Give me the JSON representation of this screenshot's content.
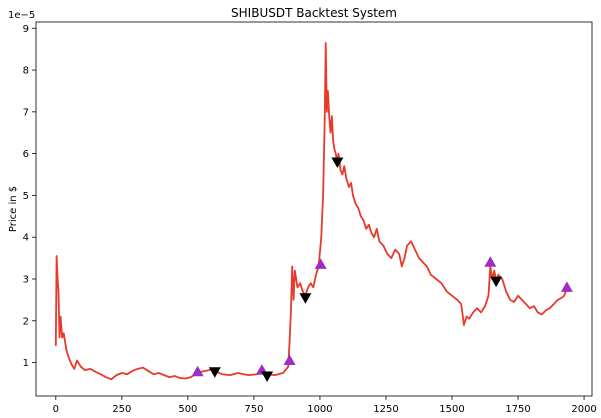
{
  "chart_data": {
    "type": "line",
    "title": "SHIBUSDT Backtest System",
    "xlabel": "",
    "ylabel": "Price in $",
    "y_offset_label": "1e−5",
    "xlim": [
      -75,
      2030
    ],
    "ylim": [
      0.2,
      9.15
    ],
    "grid": false,
    "x_ticks": [
      0,
      250,
      500,
      750,
      1000,
      1250,
      1500,
      1750,
      2000
    ],
    "x_tick_labels": [
      "0",
      "250",
      "500",
      "750",
      "1000",
      "1250",
      "1500",
      "1750",
      "2000"
    ],
    "y_ticks": [
      1,
      2,
      3,
      4,
      5,
      6,
      7,
      8,
      9
    ],
    "y_tick_labels": [
      "1",
      "2",
      "3",
      "4",
      "5",
      "6",
      "7",
      "8",
      "9"
    ],
    "line_color": "#e8392a",
    "buy_color": "#a02cc4",
    "sell_color": "#000000",
    "series": [
      {
        "points": [
          [
            0,
            1.4
          ],
          [
            3,
            3.55
          ],
          [
            6,
            3.1
          ],
          [
            10,
            2.7
          ],
          [
            14,
            1.6
          ],
          [
            18,
            2.1
          ],
          [
            24,
            1.6
          ],
          [
            30,
            1.7
          ],
          [
            40,
            1.3
          ],
          [
            50,
            1.1
          ],
          [
            60,
            0.95
          ],
          [
            70,
            0.85
          ],
          [
            80,
            1.05
          ],
          [
            95,
            0.9
          ],
          [
            110,
            0.82
          ],
          [
            130,
            0.85
          ],
          [
            150,
            0.78
          ],
          [
            170,
            0.72
          ],
          [
            190,
            0.65
          ],
          [
            210,
            0.6
          ],
          [
            230,
            0.7
          ],
          [
            250,
            0.75
          ],
          [
            270,
            0.72
          ],
          [
            290,
            0.8
          ],
          [
            310,
            0.85
          ],
          [
            330,
            0.88
          ],
          [
            350,
            0.8
          ],
          [
            370,
            0.72
          ],
          [
            390,
            0.75
          ],
          [
            410,
            0.7
          ],
          [
            430,
            0.65
          ],
          [
            450,
            0.68
          ],
          [
            470,
            0.63
          ],
          [
            490,
            0.62
          ],
          [
            510,
            0.65
          ],
          [
            530,
            0.72
          ],
          [
            550,
            0.78
          ],
          [
            580,
            0.82
          ],
          [
            600,
            0.85
          ],
          [
            610,
            0.78
          ],
          [
            630,
            0.72
          ],
          [
            660,
            0.7
          ],
          [
            690,
            0.75
          ],
          [
            710,
            0.72
          ],
          [
            730,
            0.7
          ],
          [
            760,
            0.72
          ],
          [
            780,
            0.75
          ],
          [
            800,
            0.72
          ],
          [
            830,
            0.7
          ],
          [
            860,
            0.75
          ],
          [
            880,
            0.9
          ],
          [
            885,
            1.5
          ],
          [
            890,
            2.2
          ],
          [
            895,
            3.3
          ],
          [
            900,
            2.5
          ],
          [
            905,
            3.2
          ],
          [
            915,
            2.8
          ],
          [
            925,
            2.9
          ],
          [
            935,
            2.7
          ],
          [
            945,
            2.6
          ],
          [
            955,
            2.8
          ],
          [
            965,
            2.9
          ],
          [
            975,
            2.8
          ],
          [
            985,
            3.1
          ],
          [
            995,
            3.3
          ],
          [
            1005,
            4.0
          ],
          [
            1012,
            5.0
          ],
          [
            1018,
            6.8
          ],
          [
            1022,
            8.65
          ],
          [
            1026,
            7.0
          ],
          [
            1030,
            7.5
          ],
          [
            1035,
            6.9
          ],
          [
            1040,
            6.5
          ],
          [
            1045,
            6.9
          ],
          [
            1050,
            6.3
          ],
          [
            1055,
            6.1
          ],
          [
            1060,
            6.0
          ],
          [
            1065,
            5.8
          ],
          [
            1070,
            6.0
          ],
          [
            1078,
            5.6
          ],
          [
            1085,
            5.5
          ],
          [
            1092,
            5.7
          ],
          [
            1100,
            5.4
          ],
          [
            1110,
            5.2
          ],
          [
            1118,
            5.3
          ],
          [
            1125,
            5.0
          ],
          [
            1135,
            4.8
          ],
          [
            1145,
            4.7
          ],
          [
            1155,
            4.5
          ],
          [
            1165,
            4.4
          ],
          [
            1175,
            4.2
          ],
          [
            1185,
            4.3
          ],
          [
            1195,
            4.1
          ],
          [
            1205,
            4.0
          ],
          [
            1215,
            4.2
          ],
          [
            1225,
            3.9
          ],
          [
            1240,
            3.8
          ],
          [
            1255,
            3.6
          ],
          [
            1270,
            3.5
          ],
          [
            1285,
            3.7
          ],
          [
            1300,
            3.6
          ],
          [
            1310,
            3.3
          ],
          [
            1320,
            3.5
          ],
          [
            1330,
            3.8
          ],
          [
            1345,
            3.9
          ],
          [
            1360,
            3.7
          ],
          [
            1375,
            3.5
          ],
          [
            1390,
            3.4
          ],
          [
            1405,
            3.3
          ],
          [
            1420,
            3.1
          ],
          [
            1440,
            3.0
          ],
          [
            1460,
            2.9
          ],
          [
            1480,
            2.7
          ],
          [
            1500,
            2.6
          ],
          [
            1520,
            2.5
          ],
          [
            1535,
            2.4
          ],
          [
            1545,
            1.9
          ],
          [
            1555,
            2.1
          ],
          [
            1565,
            2.05
          ],
          [
            1580,
            2.2
          ],
          [
            1595,
            2.3
          ],
          [
            1610,
            2.2
          ],
          [
            1625,
            2.35
          ],
          [
            1638,
            2.6
          ],
          [
            1645,
            3.3
          ],
          [
            1652,
            3.0
          ],
          [
            1660,
            3.2
          ],
          [
            1667,
            2.95
          ],
          [
            1675,
            3.1
          ],
          [
            1690,
            3.0
          ],
          [
            1705,
            2.7
          ],
          [
            1720,
            2.5
          ],
          [
            1735,
            2.45
          ],
          [
            1750,
            2.6
          ],
          [
            1765,
            2.5
          ],
          [
            1780,
            2.4
          ],
          [
            1795,
            2.3
          ],
          [
            1810,
            2.35
          ],
          [
            1825,
            2.2
          ],
          [
            1840,
            2.15
          ],
          [
            1855,
            2.25
          ],
          [
            1870,
            2.3
          ],
          [
            1885,
            2.4
          ],
          [
            1900,
            2.5
          ],
          [
            1915,
            2.55
          ],
          [
            1925,
            2.6
          ],
          [
            1935,
            2.8
          ]
        ]
      }
    ],
    "buy_signals": [
      [
        537,
        0.78
      ],
      [
        780,
        0.82
      ],
      [
        885,
        1.05
      ],
      [
        1003,
        3.35
      ],
      [
        1645,
        3.4
      ],
      [
        1935,
        2.8
      ]
    ],
    "sell_signals": [
      [
        602,
        0.78
      ],
      [
        800,
        0.68
      ],
      [
        945,
        2.55
      ],
      [
        1066,
        5.8
      ],
      [
        1667,
        2.95
      ]
    ]
  }
}
